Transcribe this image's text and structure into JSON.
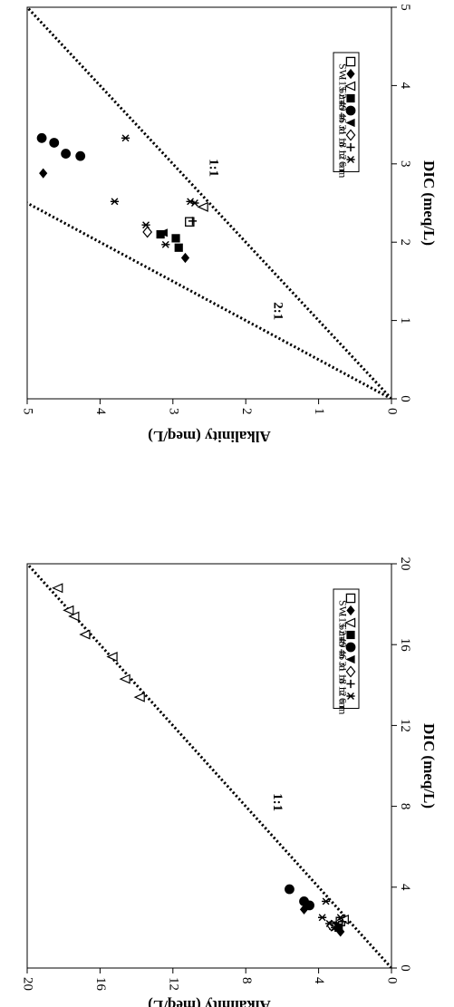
{
  "chart_data": [
    {
      "type": "scatter",
      "xlabel": "DIC (meq/L)",
      "ylabel": "Alkalinity (meq/L)",
      "xlim": [
        0,
        5
      ],
      "ylim": [
        0,
        5
      ],
      "xticks": [
        "0",
        "1",
        "2",
        "3",
        "4",
        "5"
      ],
      "yticks": [
        "0",
        "1",
        "2",
        "3",
        "4",
        "5"
      ],
      "lines": [
        {
          "label": "1:1",
          "slope": 1
        },
        {
          "label": "2:1",
          "slope": 2
        }
      ],
      "legend": [
        "SW",
        "115 m",
        "62 m",
        "49 m",
        "46 m",
        "31 m",
        "18 m",
        "12 m",
        "6 m"
      ],
      "series": [
        {
          "name": "SW",
          "marker": "open-square",
          "points": [
            [
              2.26,
              2.77
            ]
          ]
        },
        {
          "name": "115 m",
          "marker": "filled-diamond",
          "points": [
            [
              1.8,
              2.83
            ],
            [
              2.88,
              4.78
            ]
          ]
        },
        {
          "name": "62 m",
          "marker": "open-triangle",
          "points": [
            [
              2.45,
              2.58
            ]
          ]
        },
        {
          "name": "49 m",
          "marker": "filled-square",
          "points": [
            [
              2.1,
              3.17
            ],
            [
              2.05,
              2.96
            ],
            [
              1.93,
              2.92
            ]
          ]
        },
        {
          "name": "46 m",
          "marker": "filled-circle",
          "points": [
            [
              3.33,
              4.8
            ],
            [
              3.27,
              4.63
            ],
            [
              3.13,
              4.47
            ],
            [
              3.1,
              4.27
            ]
          ]
        },
        {
          "name": "31 m",
          "marker": "filled-triangle",
          "points": [
            [
              2.12,
              3.13
            ]
          ]
        },
        {
          "name": "18 m",
          "marker": "open-diamond",
          "points": [
            [
              2.13,
              3.35
            ]
          ]
        },
        {
          "name": "12 m",
          "marker": "plus",
          "points": [
            [
              2.27,
              2.73
            ]
          ]
        },
        {
          "name": "6 m",
          "marker": "star",
          "points": [
            [
              3.33,
              3.65
            ],
            [
              2.52,
              3.8
            ],
            [
              2.22,
              3.37
            ],
            [
              1.97,
              3.1
            ],
            [
              2.52,
              2.76
            ],
            [
              2.5,
              2.7
            ]
          ]
        }
      ]
    },
    {
      "type": "scatter",
      "xlabel": "DIC (meq/L)",
      "ylabel": "Alkalinity (meq/L)",
      "xlim": [
        0,
        20
      ],
      "ylim": [
        0,
        20
      ],
      "xticks": [
        "0",
        "4",
        "8",
        "12",
        "16",
        "20"
      ],
      "yticks": [
        "0",
        "4",
        "8",
        "12",
        "16",
        "20"
      ],
      "lines": [
        {
          "label": "1:1",
          "slope": 1
        }
      ],
      "legend": [
        "SW",
        "115 m",
        "62 m",
        "49 m",
        "46 m",
        "31 m",
        "18 m",
        "12 m",
        "6 m"
      ],
      "series": [
        {
          "name": "SW",
          "marker": "open-square",
          "points": [
            [
              2.3,
              2.8
            ]
          ]
        },
        {
          "name": "115 m",
          "marker": "filled-diamond",
          "points": [
            [
              1.8,
              2.8
            ],
            [
              2.9,
              4.8
            ]
          ]
        },
        {
          "name": "62 m",
          "marker": "open-triangle",
          "points": [
            [
              2.4,
              2.6
            ],
            [
              13.4,
              13.8
            ],
            [
              14.3,
              14.6
            ],
            [
              15.4,
              15.3
            ],
            [
              16.5,
              16.8
            ],
            [
              17.4,
              17.4
            ],
            [
              17.7,
              17.7
            ],
            [
              18.8,
              18.3
            ]
          ]
        },
        {
          "name": "49 m",
          "marker": "filled-square",
          "points": [
            [
              2.1,
              3.2
            ],
            [
              2.0,
              2.9
            ]
          ]
        },
        {
          "name": "46 m",
          "marker": "filled-circle",
          "points": [
            [
              3.9,
              5.6
            ],
            [
              3.3,
              4.8
            ],
            [
              3.1,
              4.5
            ]
          ]
        },
        {
          "name": "31 m",
          "marker": "filled-triangle",
          "points": [
            [
              2.1,
              3.1
            ]
          ]
        },
        {
          "name": "18 m",
          "marker": "open-diamond",
          "points": [
            [
              2.1,
              3.3
            ]
          ]
        },
        {
          "name": "12 m",
          "marker": "plus",
          "points": [
            [
              2.3,
              2.7
            ]
          ]
        },
        {
          "name": "6 m",
          "marker": "star",
          "points": [
            [
              3.3,
              3.6
            ],
            [
              2.5,
              3.8
            ],
            [
              2.2,
              3.4
            ],
            [
              2.0,
              3.1
            ],
            [
              2.5,
              2.8
            ]
          ]
        }
      ]
    }
  ]
}
